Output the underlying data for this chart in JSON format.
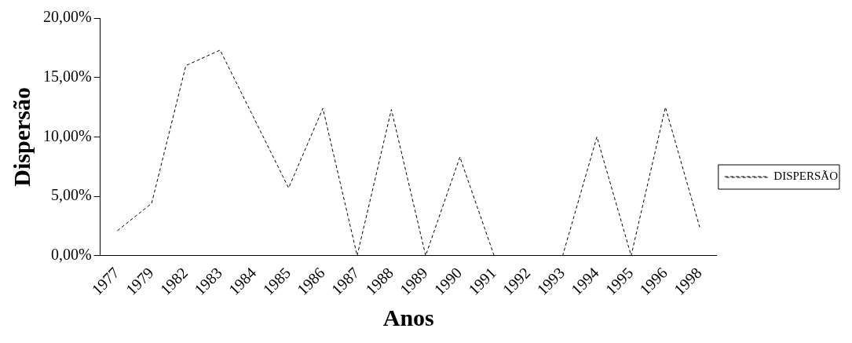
{
  "chart_data": {
    "type": "line",
    "xlabel": "Anos",
    "ylabel": "Dispersão",
    "categories": [
      "1977",
      "1979",
      "1982",
      "1983",
      "1984",
      "1985",
      "1986",
      "1987",
      "1988",
      "1989",
      "1990",
      "1991",
      "1992",
      "1993",
      "1994",
      "1995",
      "1996",
      "1998"
    ],
    "series": [
      {
        "name": "DISPERSÃO",
        "color": "#000000",
        "values": [
          2.1,
          4.4,
          16.0,
          17.3,
          11.5,
          5.7,
          12.4,
          0,
          12.3,
          0,
          8.3,
          0,
          0,
          0,
          10.0,
          0,
          12.5,
          2.4
        ]
      }
    ],
    "ylim": [
      0,
      20
    ],
    "yticks": [
      {
        "value": 0,
        "label": "0,00%"
      },
      {
        "value": 5,
        "label": "5,00%"
      },
      {
        "value": 10,
        "label": "10,00%"
      },
      {
        "value": 15,
        "label": "15,00%"
      },
      {
        "value": 20,
        "label": "20,00%"
      }
    ],
    "grid": false,
    "legend": "right",
    "marker": "none",
    "line_style": "dashed"
  }
}
